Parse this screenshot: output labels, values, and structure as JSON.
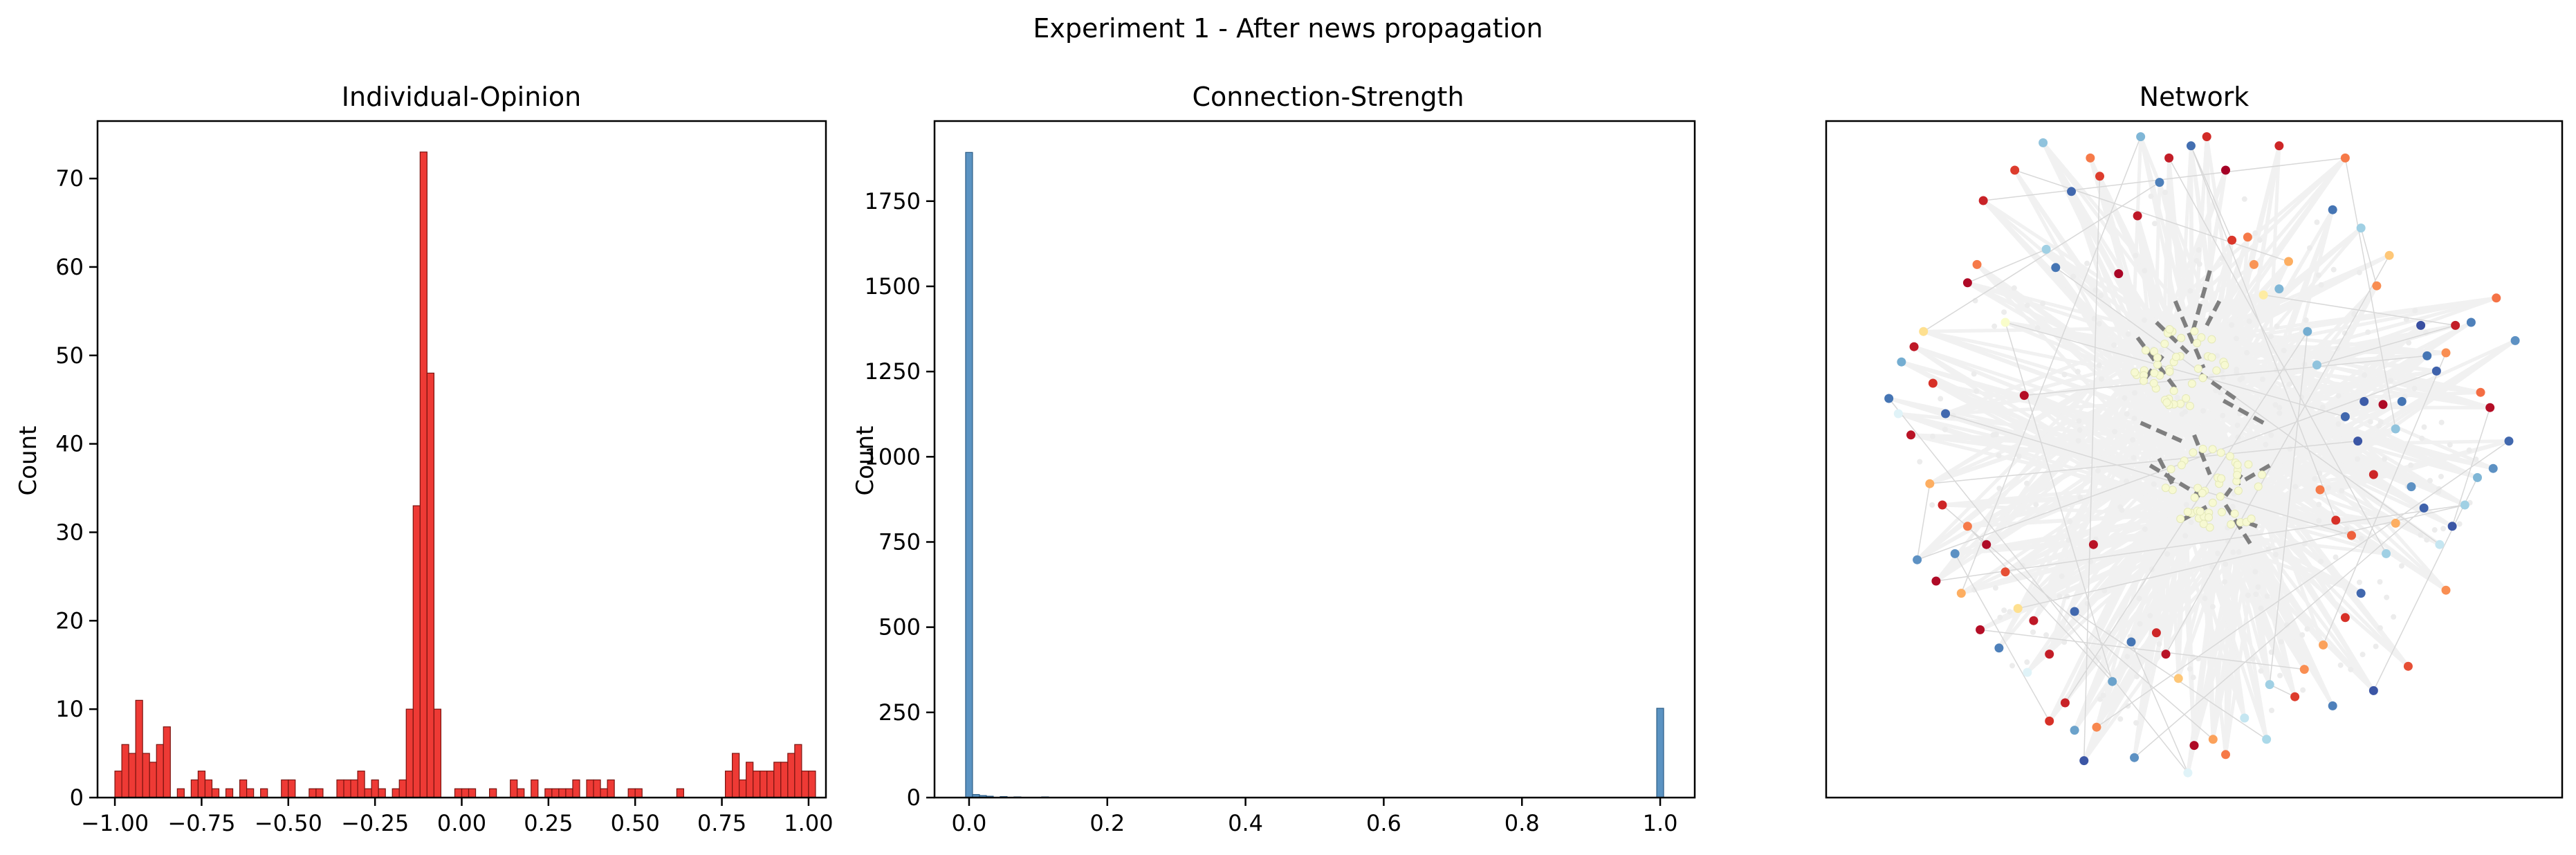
{
  "figure": {
    "suptitle": "Experiment 1 - After news propagation",
    "colors": {
      "opinion_bar": "#ee3a35",
      "opinion_edge": "#7a1410",
      "strength_bar": "#5b93c2",
      "strength_edge": "#2c5d86",
      "edge_strong": "#7f7f7f",
      "edge_weak": "#d8d8d8",
      "halo": "#f1f1f1"
    }
  },
  "chart_data": [
    {
      "type": "bar",
      "title": "Individual-Opinion",
      "xlabel": "",
      "ylabel": "Count",
      "xlim": [
        -1.05,
        1.05
      ],
      "ylim": [
        0,
        76.5
      ],
      "grid": false,
      "xticks": [
        "−1.00",
        "−0.75",
        "−0.50",
        "−0.25",
        "0.00",
        "0.25",
        "0.50",
        "0.75",
        "1.00"
      ],
      "xtick_values": [
        -1.0,
        -0.75,
        -0.5,
        -0.25,
        0.0,
        0.25,
        0.5,
        0.75,
        1.0
      ],
      "yticks": [
        "0",
        "10",
        "20",
        "30",
        "40",
        "50",
        "60",
        "70"
      ],
      "ytick_values": [
        0,
        10,
        20,
        30,
        40,
        50,
        60,
        70
      ],
      "bin_start": -1.0,
      "bin_width": 0.02,
      "values": [
        3,
        6,
        5,
        11,
        5,
        4,
        6,
        8,
        0,
        1,
        0,
        2,
        3,
        2,
        1,
        0,
        1,
        0,
        2,
        1,
        0,
        1,
        0,
        0,
        2,
        2,
        0,
        0,
        1,
        1,
        0,
        0,
        2,
        2,
        2,
        3,
        1,
        2,
        1,
        0,
        1,
        2,
        10,
        33,
        73,
        48,
        10,
        0,
        0,
        1,
        1,
        1,
        0,
        0,
        1,
        0,
        0,
        2,
        1,
        0,
        2,
        0,
        1,
        1,
        1,
        1,
        2,
        0,
        2,
        2,
        1,
        2,
        0,
        0,
        1,
        1,
        0,
        0,
        0,
        0,
        0,
        1,
        0,
        0,
        0,
        0,
        0,
        0,
        3,
        5,
        2,
        4,
        3,
        3,
        3,
        4,
        4,
        5,
        6,
        3,
        3
      ]
    },
    {
      "type": "bar",
      "title": "Connection-Strength",
      "xlabel": "",
      "ylabel": "Count",
      "xlim": [
        -0.05,
        1.05
      ],
      "ylim": [
        0,
        1985
      ],
      "grid": false,
      "xticks": [
        "0.0",
        "0.2",
        "0.4",
        "0.6",
        "0.8",
        "1.0"
      ],
      "xtick_values": [
        0.0,
        0.2,
        0.4,
        0.6,
        0.8,
        1.0
      ],
      "yticks": [
        "0",
        "250",
        "500",
        "750",
        "1000",
        "1250",
        "1500",
        "1750"
      ],
      "ytick_values": [
        0,
        250,
        500,
        750,
        1000,
        1250,
        1500,
        1750
      ],
      "bin_start": -0.005,
      "bin_width": 0.01,
      "bins": [
        {
          "x": 0.0,
          "count": 1893
        },
        {
          "x": 0.01,
          "count": 9
        },
        {
          "x": 0.02,
          "count": 6
        },
        {
          "x": 0.03,
          "count": 4
        },
        {
          "x": 0.05,
          "count": 3
        },
        {
          "x": 0.07,
          "count": 2
        },
        {
          "x": 0.11,
          "count": 2
        },
        {
          "x": 1.0,
          "count": 262
        }
      ]
    },
    {
      "type": "scatter",
      "subtype": "network",
      "title": "Network",
      "xlabel": "",
      "ylabel": "",
      "axes_visible": false,
      "note_colormap": "RdYlBu",
      "nodes": [
        [
          -0.72,
          0.58,
          0.02
        ],
        [
          -0.69,
          0.64,
          0.22
        ],
        [
          -0.67,
          0.85,
          0.07
        ],
        [
          -0.6,
          0.45,
          0.52
        ],
        [
          -0.54,
          0.21,
          0.03
        ],
        [
          -0.47,
          0.69,
          0.72
        ],
        [
          -0.44,
          0.63,
          0.9
        ],
        [
          -0.39,
          0.88,
          0.92
        ],
        [
          -0.33,
          0.99,
          0.22
        ],
        [
          -0.3,
          0.93,
          0.12
        ],
        [
          -0.24,
          0.61,
          0.01
        ],
        [
          -0.18,
          0.8,
          0.05
        ],
        [
          -0.17,
          1.06,
          0.78
        ],
        [
          -0.11,
          0.91,
          0.88
        ],
        [
          -0.08,
          0.99,
          0.06
        ],
        [
          -0.01,
          1.03,
          0.91
        ],
        [
          0.04,
          1.06,
          0.09
        ],
        [
          0.1,
          0.95,
          0.0
        ],
        [
          0.12,
          0.72,
          0.11
        ],
        [
          0.17,
          0.73,
          0.22
        ],
        [
          0.19,
          0.64,
          0.26
        ],
        [
          0.22,
          0.54,
          0.44
        ],
        [
          0.27,
          0.56,
          0.78
        ],
        [
          0.3,
          0.65,
          0.3
        ],
        [
          0.36,
          0.42,
          0.8
        ],
        [
          0.39,
          0.31,
          0.75
        ],
        [
          0.48,
          0.14,
          0.92
        ],
        [
          0.52,
          0.06,
          0.95
        ],
        [
          0.54,
          0.19,
          0.94
        ],
        [
          0.6,
          0.18,
          0.02
        ],
        [
          0.64,
          0.1,
          0.75
        ],
        [
          0.66,
          0.19,
          0.9
        ],
        [
          0.72,
          0.44,
          0.96
        ],
        [
          0.74,
          0.34,
          0.9
        ],
        [
          0.77,
          0.29,
          0.93
        ],
        [
          0.8,
          0.35,
          0.25
        ],
        [
          0.83,
          0.44,
          0.06
        ],
        [
          0.88,
          0.45,
          0.88
        ],
        [
          0.91,
          0.22,
          0.2
        ],
        [
          0.94,
          0.17,
          0.03
        ],
        [
          0.96,
          0.53,
          0.21
        ],
        [
          1.02,
          0.39,
          0.85
        ],
        [
          1.0,
          0.06,
          0.92
        ],
        [
          0.95,
          -0.03,
          0.85
        ],
        [
          0.9,
          -0.06,
          0.78
        ],
        [
          0.86,
          -0.15,
          0.72
        ],
        [
          0.82,
          -0.22,
          0.95
        ],
        [
          0.78,
          -0.28,
          0.65
        ],
        [
          0.73,
          -0.16,
          0.93
        ],
        [
          0.69,
          -0.09,
          0.85
        ],
        [
          0.64,
          -0.21,
          0.3
        ],
        [
          0.61,
          -0.31,
          0.72
        ],
        [
          0.53,
          -0.44,
          0.92
        ],
        [
          0.48,
          -0.52,
          0.1
        ],
        [
          0.41,
          -0.61,
          0.28
        ],
        [
          0.35,
          -0.69,
          0.25
        ],
        [
          0.32,
          -0.78,
          0.12
        ],
        [
          0.24,
          -0.74,
          0.72
        ],
        [
          0.16,
          -0.85,
          0.65
        ],
        [
          0.1,
          -0.97,
          0.22
        ],
        [
          0.06,
          -0.92,
          0.28
        ],
        [
          0.0,
          -0.94,
          0.02
        ],
        [
          -0.05,
          -0.72,
          0.35
        ],
        [
          -0.09,
          -0.64,
          0.04
        ],
        [
          -0.12,
          -0.57,
          0.08
        ],
        [
          -0.2,
          -0.6,
          0.9
        ],
        [
          -0.26,
          -0.73,
          0.82
        ],
        [
          -0.31,
          -0.88,
          0.24
        ],
        [
          -0.35,
          -0.99,
          0.95
        ],
        [
          -0.41,
          -0.8,
          0.07
        ],
        [
          -0.46,
          -0.64,
          0.06
        ],
        [
          -0.51,
          -0.53,
          0.05
        ],
        [
          -0.56,
          -0.49,
          0.4
        ],
        [
          -0.6,
          -0.37,
          0.15
        ],
        [
          -0.66,
          -0.28,
          0.02
        ],
        [
          -0.72,
          -0.22,
          0.22
        ],
        [
          -0.76,
          -0.31,
          0.85
        ],
        [
          -0.8,
          -0.15,
          0.08
        ],
        [
          -0.84,
          -0.08,
          0.3
        ],
        [
          -0.9,
          0.08,
          0.04
        ],
        [
          -0.94,
          0.15,
          0.6
        ],
        [
          -0.97,
          0.2,
          0.9
        ],
        [
          -0.93,
          0.32,
          0.8
        ],
        [
          -0.89,
          0.37,
          0.05
        ],
        [
          -0.86,
          0.42,
          0.4
        ],
        [
          -0.83,
          0.25,
          0.1
        ],
        [
          -0.79,
          0.15,
          0.92
        ],
        [
          -0.88,
          -0.33,
          0.85
        ],
        [
          -0.82,
          -0.4,
          0.02
        ],
        [
          -0.74,
          -0.44,
          0.3
        ],
        [
          -0.68,
          -0.56,
          0.03
        ],
        [
          -0.62,
          -0.62,
          0.88
        ],
        [
          -0.53,
          -0.7,
          0.6
        ],
        [
          -0.46,
          -0.86,
          0.1
        ],
        [
          -0.38,
          -0.89,
          0.82
        ],
        [
          0.44,
          0.82,
          0.9
        ],
        [
          0.53,
          0.76,
          0.72
        ],
        [
          0.58,
          0.57,
          0.25
        ],
        [
          0.62,
          0.67,
          0.35
        ],
        [
          0.48,
          0.99,
          0.22
        ],
        [
          0.27,
          1.03,
          0.08
        ],
        [
          -0.48,
          1.04,
          0.75
        ],
        [
          -0.57,
          0.95,
          0.12
        ],
        [
          0.8,
          -0.43,
          0.25
        ],
        [
          0.68,
          -0.68,
          0.15
        ],
        [
          0.57,
          -0.76,
          0.95
        ],
        [
          0.44,
          -0.81,
          0.88
        ],
        [
          0.23,
          -0.92,
          0.7
        ],
        [
          -0.02,
          -1.03,
          0.6
        ],
        [
          -0.19,
          -0.98,
          0.85
        ],
        [
          0.45,
          -0.2,
          0.1
        ],
        [
          0.5,
          -0.25,
          0.18
        ],
        [
          0.4,
          -0.1,
          0.22
        ],
        [
          0.57,
          -0.05,
          0.08
        ],
        [
          -0.38,
          -0.5,
          0.92
        ],
        [
          -0.32,
          -0.28,
          0.04
        ]
      ],
      "core_center_a": [
        -0.05,
        0.3
      ],
      "core_center_b": [
        0.07,
        -0.1
      ],
      "core_color": "#f7f9d2",
      "strong_edges": [
        [
          -0.18,
          0.4,
          -0.05,
          0.22
        ],
        [
          -0.12,
          0.45,
          -0.02,
          0.35
        ],
        [
          0.05,
          0.62,
          -0.01,
          0.4
        ],
        [
          -0.06,
          0.52,
          0.03,
          0.3
        ],
        [
          0.13,
          0.2,
          0.02,
          0.28
        ],
        [
          0.22,
          0.12,
          0.08,
          0.2
        ],
        [
          -0.17,
          0.12,
          -0.04,
          0.06
        ],
        [
          0.0,
          0.08,
          0.05,
          -0.05
        ],
        [
          -0.14,
          -0.02,
          0.02,
          -0.12
        ],
        [
          0.15,
          -0.05,
          0.1,
          -0.12
        ],
        [
          0.1,
          -0.15,
          0.18,
          -0.28
        ],
        [
          -0.04,
          -0.2,
          0.05,
          -0.15
        ],
        [
          0.24,
          -0.02,
          0.14,
          -0.08
        ],
        [
          -0.1,
          0.34,
          -0.16,
          0.26
        ],
        [
          0.08,
          0.52,
          0.04,
          0.44
        ],
        [
          -0.07,
          -0.08,
          -0.12,
          0.02
        ],
        [
          0.2,
          -0.22,
          0.15,
          -0.2
        ]
      ]
    }
  ]
}
